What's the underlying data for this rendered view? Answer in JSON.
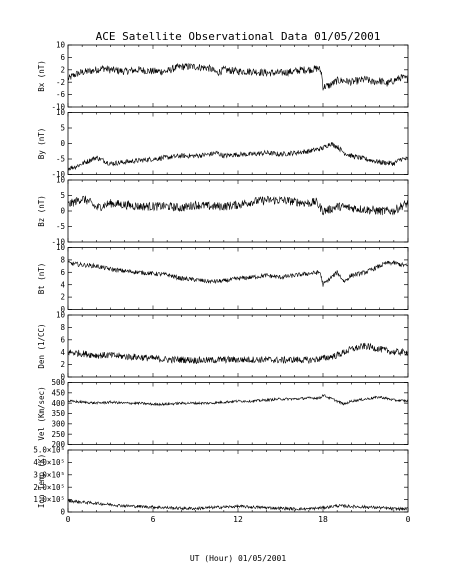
{
  "title": "ACE Satellite Observational Data   01/05/2001",
  "xlabel": "UT (Hour)  01/05/2001",
  "colors": {
    "line": "#000000",
    "background": "#ffffff",
    "axes": "#000000"
  },
  "chart_data": {
    "type": "line",
    "x_range": [
      0,
      24
    ],
    "x_ticks": [
      "0",
      "6",
      "12",
      "18",
      "0"
    ],
    "panels": [
      {
        "ylabel": "Bx (nT)",
        "ylim": [
          -10,
          10
        ],
        "y_ticks": [
          "10",
          "6",
          "2",
          "-2",
          "-6",
          "-10"
        ],
        "noise": 1.2,
        "series": [
          [
            0,
            -1
          ],
          [
            0.5,
            0.5
          ],
          [
            1,
            1.2
          ],
          [
            1.5,
            1.5
          ],
          [
            2,
            2
          ],
          [
            2.5,
            2.5
          ],
          [
            3,
            2.0
          ],
          [
            4,
            1.5
          ],
          [
            5,
            2.0
          ],
          [
            6,
            1.5
          ],
          [
            7,
            1.5
          ],
          [
            7.5,
            2.5
          ],
          [
            8,
            3.0
          ],
          [
            9,
            3.0
          ],
          [
            10,
            2.5
          ],
          [
            10.5,
            1.0
          ],
          [
            11,
            2.0
          ],
          [
            12,
            1.5
          ],
          [
            13,
            1.5
          ],
          [
            14,
            1.0
          ],
          [
            15,
            1.0
          ],
          [
            16,
            1.5
          ],
          [
            16.5,
            2.0
          ],
          [
            17,
            2.0
          ],
          [
            17.7,
            2.5
          ],
          [
            17.9,
            1.0
          ],
          [
            18,
            -3.5
          ],
          [
            18.5,
            -3.0
          ],
          [
            19,
            -1.5
          ],
          [
            19.5,
            -1.5
          ],
          [
            20,
            -2.0
          ],
          [
            20.5,
            -1.5
          ],
          [
            21,
            -1.0
          ],
          [
            21.5,
            -2.0
          ],
          [
            22,
            -1.5
          ],
          [
            22.5,
            -2.5
          ],
          [
            23,
            -1.5
          ],
          [
            23.5,
            -0.5
          ],
          [
            24,
            -1.0
          ]
        ]
      },
      {
        "ylabel": "By (nT)",
        "ylim": [
          -10,
          10
        ],
        "y_ticks": [
          "10",
          "5",
          "0",
          "-5",
          "-10"
        ],
        "noise": 0.8,
        "series": [
          [
            0,
            -8
          ],
          [
            0.5,
            -7.5
          ],
          [
            1,
            -6.5
          ],
          [
            1.5,
            -5.5
          ],
          [
            2,
            -4.5
          ],
          [
            2.5,
            -5.5
          ],
          [
            3,
            -6.5
          ],
          [
            4,
            -6
          ],
          [
            5,
            -5.5
          ],
          [
            6,
            -5
          ],
          [
            7,
            -4.5
          ],
          [
            8,
            -4
          ],
          [
            9,
            -4
          ],
          [
            10,
            -3.5
          ],
          [
            10.5,
            -3.0
          ],
          [
            11,
            -4
          ],
          [
            12,
            -3.5
          ],
          [
            13,
            -3.5
          ],
          [
            14,
            -3
          ],
          [
            15,
            -3.5
          ],
          [
            16,
            -3
          ],
          [
            17,
            -2.5
          ],
          [
            18,
            -1.5
          ],
          [
            18.5,
            0
          ],
          [
            19,
            -1
          ],
          [
            19.5,
            -3
          ],
          [
            20,
            -4
          ],
          [
            21,
            -5
          ],
          [
            22,
            -6
          ],
          [
            23,
            -6.5
          ],
          [
            23.5,
            -5
          ],
          [
            24,
            -5
          ]
        ]
      },
      {
        "ylabel": "Bz (nT)",
        "ylim": [
          -10,
          10
        ],
        "y_ticks": [
          "10",
          "5",
          "0",
          "-5",
          "-10"
        ],
        "noise": 1.4,
        "series": [
          [
            0,
            2
          ],
          [
            0.5,
            3
          ],
          [
            1,
            4
          ],
          [
            1.5,
            3
          ],
          [
            2,
            1
          ],
          [
            3,
            2.5
          ],
          [
            4,
            2
          ],
          [
            5,
            1.5
          ],
          [
            6,
            1.5
          ],
          [
            7,
            1.5
          ],
          [
            8,
            1
          ],
          [
            9,
            2
          ],
          [
            10,
            1.5
          ],
          [
            11,
            1.5
          ],
          [
            12,
            2
          ],
          [
            13,
            3
          ],
          [
            14,
            3.5
          ],
          [
            15,
            3.5
          ],
          [
            16,
            3
          ],
          [
            17,
            2.5
          ],
          [
            17.5,
            3
          ],
          [
            18,
            0
          ],
          [
            18.5,
            0.5
          ],
          [
            19,
            1.5
          ],
          [
            20,
            1
          ],
          [
            21,
            0.5
          ],
          [
            22,
            0
          ],
          [
            23,
            0
          ],
          [
            23.5,
            1.5
          ],
          [
            24,
            2.5
          ]
        ]
      },
      {
        "ylabel": "Bt (nT)",
        "ylim": [
          0,
          10
        ],
        "y_ticks": [
          "10",
          "8",
          "6",
          "4",
          "2",
          "0"
        ],
        "noise": 0.35,
        "series": [
          [
            0,
            7.5
          ],
          [
            1,
            7.2
          ],
          [
            2,
            7.0
          ],
          [
            3,
            6.5
          ],
          [
            4,
            6.2
          ],
          [
            5,
            6.0
          ],
          [
            6,
            5.8
          ],
          [
            7,
            5.6
          ],
          [
            8,
            5.0
          ],
          [
            9,
            4.8
          ],
          [
            10,
            4.5
          ],
          [
            11,
            4.6
          ],
          [
            12,
            5.0
          ],
          [
            13,
            5.2
          ],
          [
            14,
            5.5
          ],
          [
            15,
            5.2
          ],
          [
            16,
            5.5
          ],
          [
            17,
            5.8
          ],
          [
            17.8,
            6.0
          ],
          [
            18,
            4.0
          ],
          [
            18.5,
            5.0
          ],
          [
            19,
            6.0
          ],
          [
            19.5,
            4.5
          ],
          [
            20,
            5.5
          ],
          [
            21,
            6.0
          ],
          [
            22,
            7.0
          ],
          [
            22.5,
            7.5
          ],
          [
            23,
            7.5
          ],
          [
            24,
            7.0
          ]
        ]
      },
      {
        "ylabel": "Den (1/CC)",
        "ylim": [
          0,
          10
        ],
        "y_ticks": [
          "10",
          "8",
          "6",
          "4",
          "2",
          "0"
        ],
        "noise": 0.55,
        "series": [
          [
            0,
            4
          ],
          [
            1,
            3.8
          ],
          [
            2,
            3.5
          ],
          [
            3,
            3.5
          ],
          [
            4,
            3.3
          ],
          [
            5,
            3.2
          ],
          [
            6,
            3
          ],
          [
            7,
            2.8
          ],
          [
            8,
            2.8
          ],
          [
            9,
            2.7
          ],
          [
            10,
            2.7
          ],
          [
            11,
            2.8
          ],
          [
            12,
            2.8
          ],
          [
            13,
            2.8
          ],
          [
            14,
            2.8
          ],
          [
            15,
            2.7
          ],
          [
            16,
            2.8
          ],
          [
            17,
            2.7
          ],
          [
            18,
            3
          ],
          [
            19,
            3.5
          ],
          [
            20,
            4.5
          ],
          [
            21,
            5
          ],
          [
            22,
            4.5
          ],
          [
            23,
            4
          ],
          [
            24,
            4
          ]
        ]
      },
      {
        "ylabel": "Vel (Km/sec)",
        "ylim": [
          200,
          500
        ],
        "y_ticks": [
          "500",
          "450",
          "400",
          "350",
          "300",
          "250",
          "200"
        ],
        "noise": 6,
        "series": [
          [
            0,
            410
          ],
          [
            1,
            405
          ],
          [
            2,
            400
          ],
          [
            3,
            405
          ],
          [
            4,
            400
          ],
          [
            5,
            400
          ],
          [
            6,
            395
          ],
          [
            7,
            395
          ],
          [
            8,
            400
          ],
          [
            9,
            400
          ],
          [
            10,
            400
          ],
          [
            11,
            405
          ],
          [
            12,
            410
          ],
          [
            13,
            410
          ],
          [
            14,
            415
          ],
          [
            15,
            420
          ],
          [
            16,
            420
          ],
          [
            17,
            425
          ],
          [
            17.8,
            425
          ],
          [
            18,
            440
          ],
          [
            18.3,
            430
          ],
          [
            19,
            410
          ],
          [
            19.5,
            395
          ],
          [
            20,
            410
          ],
          [
            21,
            420
          ],
          [
            22,
            430
          ],
          [
            23,
            415
          ],
          [
            24,
            410
          ]
        ]
      },
      {
        "ylabel": "Ion Temp (K)",
        "ylim": [
          0,
          500000
        ],
        "y_ticks": [
          "5.0×10⁵",
          "4.0×10⁵",
          "3.0×10⁵",
          "2.0×10⁵",
          "1.0×10⁵",
          "0"
        ],
        "noise": 12000,
        "series": [
          [
            0,
            90000
          ],
          [
            1,
            80000
          ],
          [
            2,
            70000
          ],
          [
            3,
            60000
          ],
          [
            4,
            50000
          ],
          [
            5,
            45000
          ],
          [
            6,
            40000
          ],
          [
            7,
            35000
          ],
          [
            8,
            30000
          ],
          [
            9,
            28000
          ],
          [
            10,
            35000
          ],
          [
            11,
            40000
          ],
          [
            12,
            45000
          ],
          [
            13,
            40000
          ],
          [
            14,
            35000
          ],
          [
            15,
            30000
          ],
          [
            16,
            25000
          ],
          [
            17,
            25000
          ],
          [
            18,
            35000
          ],
          [
            19,
            50000
          ],
          [
            20,
            45000
          ],
          [
            21,
            40000
          ],
          [
            22,
            35000
          ],
          [
            23,
            25000
          ],
          [
            24,
            25000
          ]
        ]
      }
    ]
  }
}
